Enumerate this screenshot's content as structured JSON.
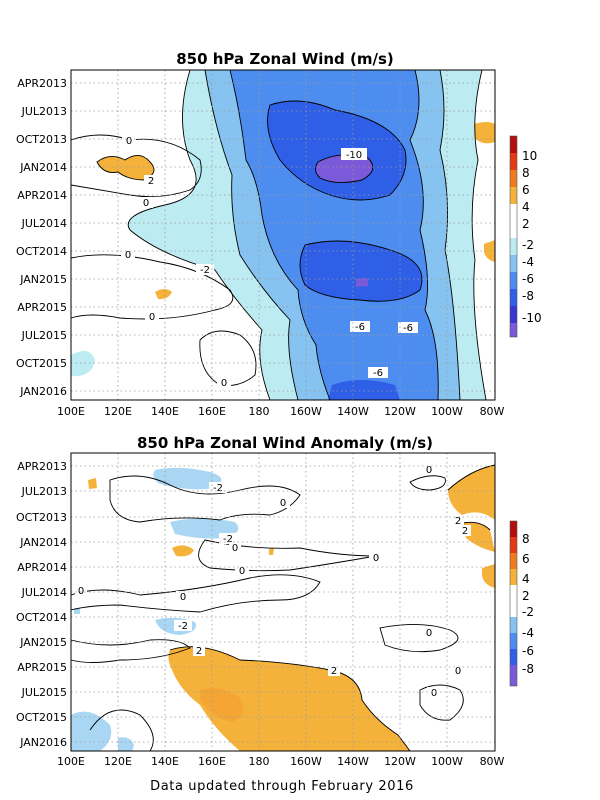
{
  "footer": "Data updated through February 2016",
  "chart_data": [
    {
      "type": "heatmap",
      "title": "850 hPa Zonal Wind (m/s)",
      "x_ticks": [
        "100E",
        "120E",
        "140E",
        "160E",
        "180",
        "160W",
        "140W",
        "120W",
        "100W",
        "80W"
      ],
      "y_ticks": [
        "APR2013",
        "JUL2013",
        "OCT2013",
        "JAN2014",
        "APR2014",
        "JUL2014",
        "OCT2014",
        "JAN2015",
        "APR2015",
        "JUL2015",
        "OCT2015",
        "JAN2016"
      ],
      "colorbar": {
        "labels": [
          "10",
          "8",
          "6",
          "4",
          "2",
          "-2",
          "-4",
          "-6",
          "-8",
          "-10"
        ],
        "colors": [
          "#b40f0f",
          "#e23a14",
          "#f07a1e",
          "#f5b23b",
          "#ffffff",
          "#ffffff",
          "#bdebf2",
          "#86c3f0",
          "#4e8df0",
          "#2f5fe6",
          "#3838cf",
          "#7a5ad8"
        ]
      },
      "contour_labels": [
        "0",
        "2",
        "0",
        "0",
        "-2",
        "0",
        "0",
        "-10",
        "-6",
        "-6",
        "-6"
      ],
      "grid": true
    },
    {
      "type": "heatmap",
      "title": "850 hPa Zonal Wind Anomaly (m/s)",
      "x_ticks": [
        "100E",
        "120E",
        "140E",
        "160E",
        "180",
        "160W",
        "140W",
        "120W",
        "100W",
        "80W"
      ],
      "y_ticks": [
        "APR2013",
        "JUL2013",
        "OCT2013",
        "JAN2014",
        "APR2014",
        "JUL2014",
        "OCT2014",
        "JAN2015",
        "APR2015",
        "JUL2015",
        "OCT2015",
        "JAN2016"
      ],
      "colorbar": {
        "labels": [
          "8",
          "6",
          "4",
          "2",
          "-2",
          "-4",
          "-6",
          "-8"
        ],
        "colors": [
          "#b40f0f",
          "#e23a14",
          "#f07a1e",
          "#f5b23b",
          "#ffffff",
          "#ffffff",
          "#86c3f0",
          "#4e8df0",
          "#2f5fe6",
          "#7a5ad8"
        ]
      },
      "contour_labels": [
        "0",
        "-2",
        "0",
        "2",
        "2",
        "-2",
        "0",
        "0",
        "0",
        "0",
        "0",
        "-2",
        "0",
        "2",
        "2",
        "0",
        "0"
      ],
      "grid": true
    }
  ]
}
